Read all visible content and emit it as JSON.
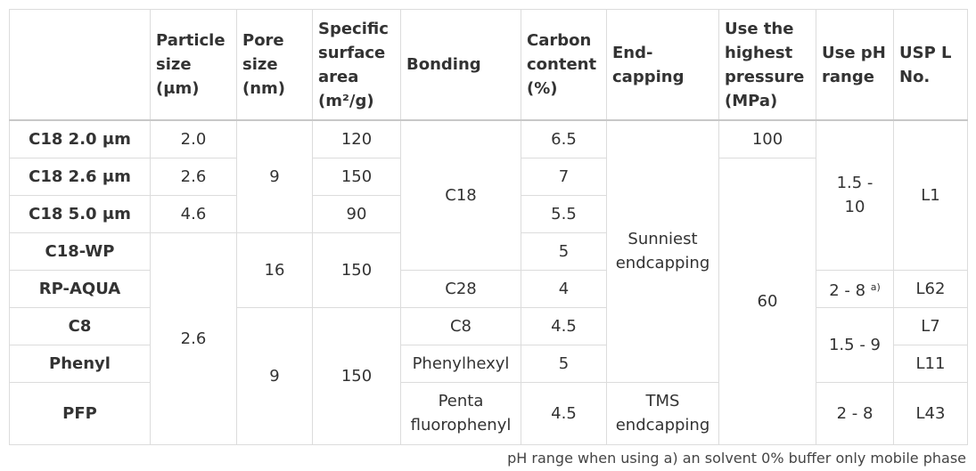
{
  "table": {
    "header": [
      "",
      "Particle size (μm)",
      "Pore size (nm)",
      "Specific surface area (m²/g)",
      "Bonding",
      "Carbon content (%)",
      "End-capping",
      "Use the highest pressure (MPa)",
      "Use pH range",
      "USP L No."
    ],
    "rows": [
      [
        "C18 2.0 μm",
        "2.0",
        "9",
        "120",
        "C18",
        "6.5",
        "Sunniest endcapping",
        "100",
        "1.5 - 10",
        "L1"
      ],
      [
        "C18 2.6 μm",
        "2.6",
        "150",
        "7",
        "60"
      ],
      [
        "C18 5.0 μm",
        "4.6",
        "90",
        "5.5"
      ],
      [
        "C18-WP",
        "2.6",
        "16",
        "150",
        "5"
      ],
      [
        "RP-AQUA",
        "C28",
        "4",
        {
          "text": "2 - 8",
          "note": "a)"
        },
        "L62"
      ],
      [
        "C8",
        "9",
        "150",
        "C8",
        "4.5",
        "1.5 - 9",
        "L7"
      ],
      [
        "Phenyl",
        "Phenylhexyl",
        "5",
        "L11"
      ],
      [
        "PFP",
        "Penta fluorophenyl",
        "4.5",
        "TMS endcapping",
        "2 - 8",
        "L43"
      ]
    ]
  },
  "footnote": "pH range when using a) an solvent 0% buffer only mobile phase"
}
